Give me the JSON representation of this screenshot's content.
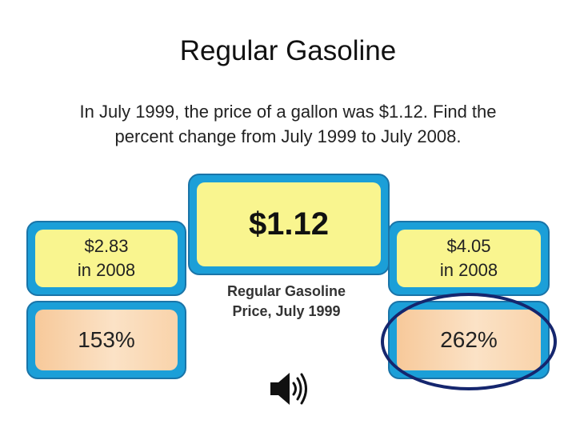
{
  "slide": {
    "title": "Regular Gasoline",
    "question_line1": "In July 1999, the price of a gallon was $1.12. Find the",
    "question_line2": "percent change from July 1999 to July 2008."
  },
  "center_box": {
    "value": "$1.12",
    "caption_line1": "Regular Gasoline",
    "caption_line2": "Price, July 1999"
  },
  "left_option": {
    "price_line1": "$2.83",
    "price_line2": "in 2008",
    "percent": "153%"
  },
  "right_option": {
    "price_line1": "$4.05",
    "price_line2": "in 2008",
    "percent": "262%",
    "selected": true
  },
  "colors": {
    "frame_blue": "#1b9fd8",
    "yellow_fill": "#f9f58f",
    "peach_fill": "#f7c99a",
    "selection_ring": "#15266e"
  },
  "icons": {
    "audio": "speaker-icon"
  }
}
